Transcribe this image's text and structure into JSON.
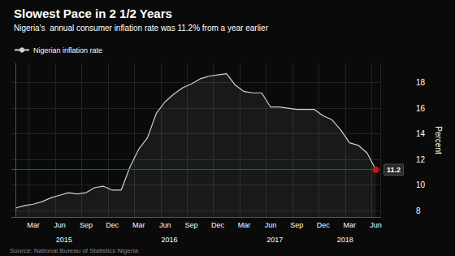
{
  "chart_data": {
    "type": "line",
    "title": "Slowest Pace in 2 1/2 Years",
    "subtitle": "Nigeria's  annual consumer inflation rate was 11.2% from a year earlier",
    "source": "Source: National Bureau of Statistics Nigeria",
    "ylabel": "Percent",
    "categories": [
      null,
      null,
      "Mar",
      null,
      null,
      "Jun",
      null,
      null,
      "Sep",
      null,
      null,
      "Dec",
      null,
      null,
      "Mar",
      null,
      null,
      "Jun",
      null,
      null,
      "Sep",
      null,
      null,
      "Dec",
      null,
      null,
      "Mar",
      null,
      null,
      "Jun",
      null,
      null,
      "Sep",
      null,
      null,
      "Dec",
      null,
      null,
      "Mar",
      null,
      null,
      "Jun"
    ],
    "series": [
      {
        "name": "Nigerian inflation rate",
        "color": "#d0d0d0",
        "values": [
          8.2,
          8.4,
          8.5,
          8.7,
          9.0,
          9.2,
          9.4,
          9.3,
          9.4,
          9.8,
          9.9,
          9.6,
          9.6,
          11.4,
          12.8,
          13.7,
          15.6,
          16.5,
          17.1,
          17.6,
          17.9,
          18.3,
          18.5,
          18.6,
          18.7,
          17.8,
          17.3,
          17.2,
          17.2,
          16.1,
          16.1,
          16.0,
          15.9,
          15.9,
          15.9,
          15.4,
          15.1,
          14.3,
          13.3,
          13.1,
          12.5,
          11.2
        ]
      }
    ],
    "ylim": [
      7.5,
      19.5
    ],
    "yticks": [
      8,
      10,
      12,
      14,
      16,
      18
    ],
    "grid": true,
    "legend": "upper left",
    "reference_line": {
      "value": 11.2,
      "color": "#cc1111"
    },
    "annotations": [
      {
        "text": "2015",
        "x": 5.5
      },
      {
        "text": "2016",
        "x": 17.5
      },
      {
        "text": "2017",
        "x": 29.5
      },
      {
        "text": "2018",
        "x": 37.5
      }
    ]
  }
}
